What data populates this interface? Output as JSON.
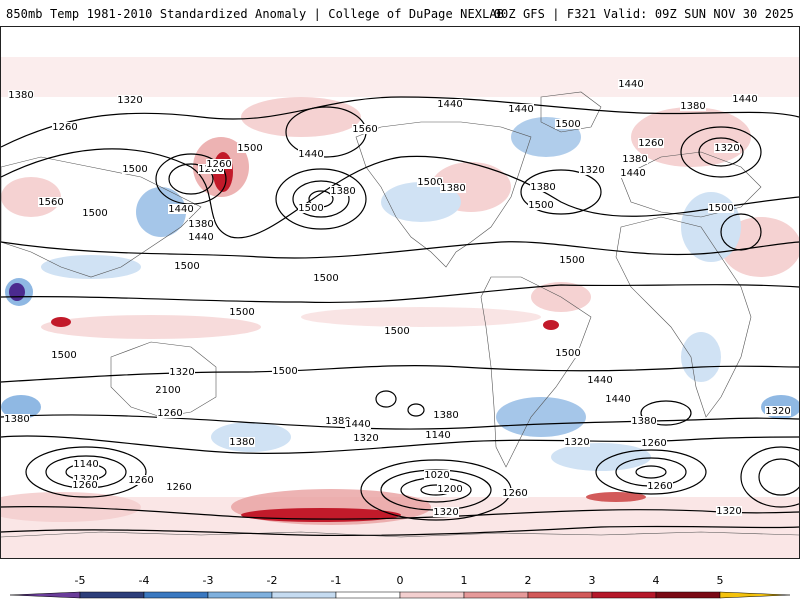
{
  "header": {
    "title_left": "850mb Temp 1981-2010 Standardized Anomaly | College of DuPage NEXLAB",
    "title_right": "00Z GFS | F321 Valid: 09Z SUN NOV 30 2025"
  },
  "map": {
    "contour_labels": [
      "1380",
      "1320",
      "1260",
      "1500",
      "1200",
      "1260",
      "1380",
      "1440",
      "1560",
      "1500",
      "1440",
      "1500",
      "1440",
      "1380",
      "1500",
      "1560",
      "1500",
      "1440",
      "1380",
      "1440",
      "1440",
      "1380",
      "1500",
      "1260",
      "1380",
      "1320",
      "1440",
      "1440",
      "1380",
      "1320",
      "1500",
      "1500",
      "1500",
      "1500",
      "1500",
      "1500",
      "1500",
      "1500",
      "1500",
      "1440",
      "1320",
      "2100",
      "1260",
      "1140",
      "1320",
      "1260",
      "1380",
      "1380",
      "1440",
      "1380",
      "1140",
      "1320",
      "1260",
      "1020",
      "1200",
      "1260",
      "1500",
      "1440",
      "1380",
      "1380",
      "1320",
      "1320",
      "1260",
      "1260",
      "1320",
      "1260",
      "1320"
    ],
    "palette": {
      "strong_cold": "#4b2a8f",
      "cold": "#8fb8e3",
      "light_cold": "#d0e2f4",
      "light_warm": "#f5d2d2",
      "warm": "#e8a0a0",
      "strong_warm": "#c21a2a",
      "contour": "#000000"
    }
  },
  "colorbar": {
    "ticks": [
      "-5",
      "-4",
      "-3",
      "-2",
      "-1",
      "0",
      "1",
      "2",
      "3",
      "4",
      "5"
    ],
    "colors": [
      "#6a3d9a",
      "#2c3e7a",
      "#3a78c0",
      "#7fb0dd",
      "#c5dbf0",
      "#ffffff",
      "#f3cfcf",
      "#e69a9a",
      "#d25a5a",
      "#b5182a",
      "#7a0a15",
      "#f4c20d"
    ]
  }
}
